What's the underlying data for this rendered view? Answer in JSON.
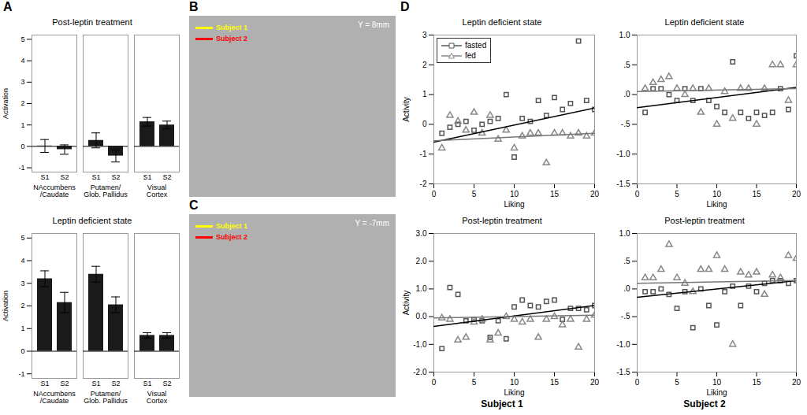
{
  "chart_data": [
    {
      "type": "bar",
      "title": "Post-leptin treatment",
      "categories": [
        "NAccumbens\n/Caudate",
        "Putamen/\nGlob. Pallidus",
        "Visual\nCortex"
      ],
      "series": [
        {
          "name": "S1",
          "color": "#1a1a1a",
          "values": [
            0.02,
            0.28,
            1.15
          ],
          "errors": [
            0.3,
            0.35,
            0.2
          ]
        },
        {
          "name": "S2",
          "color": "#1a1a1a",
          "values": [
            -0.15,
            -0.45,
            1.0
          ],
          "errors": [
            0.22,
            0.28,
            0.18
          ]
        }
      ],
      "ylabel": "Activation",
      "ylim": [
        -1.2,
        5.2
      ],
      "yticks": [
        -1,
        0,
        1,
        2,
        3,
        4,
        5
      ],
      "annotations": [
        "A"
      ]
    },
    {
      "type": "bar",
      "title": "Leptin deficient state",
      "categories": [
        "NAccumbens\n/Caudate",
        "Putamen/\nGlob. Pallidus",
        "Visual\nCortex"
      ],
      "series": [
        {
          "name": "S1",
          "color": "#1a1a1a",
          "values": [
            3.2,
            3.4,
            0.7
          ],
          "errors": [
            0.35,
            0.35,
            0.12
          ]
        },
        {
          "name": "S2",
          "color": "#1a1a1a",
          "values": [
            2.15,
            2.05,
            0.7
          ],
          "errors": [
            0.45,
            0.35,
            0.12
          ]
        }
      ],
      "ylabel": "Activation",
      "ylim": [
        -1.2,
        5.2
      ],
      "yticks": [
        -1,
        0,
        1,
        2,
        3,
        4,
        5
      ]
    },
    {
      "type": "image",
      "series": [
        {
          "name": "Subject 1",
          "color": "yellow"
        },
        {
          "name": "Subject 2",
          "color": "red"
        }
      ],
      "legend": "upper left",
      "annotations": [
        "B",
        "Y = 8mm"
      ]
    },
    {
      "type": "image",
      "series": [
        {
          "name": "Subject 1",
          "color": "yellow"
        },
        {
          "name": "Subject 2",
          "color": "red"
        }
      ],
      "legend": "upper left",
      "annotations": [
        "C",
        "Y = -7mm"
      ]
    },
    {
      "type": "scatter",
      "title": "Leptin deficient state",
      "xlabel": "Liking",
      "ylabel": "Activity",
      "xlim": [
        0,
        20
      ],
      "ylim": [
        -2.0,
        3.0
      ],
      "xticks": [
        0,
        5,
        10,
        15,
        20
      ],
      "yticks": [
        -2,
        -1,
        0,
        1,
        2,
        3
      ],
      "legend": "upper left",
      "series": [
        {
          "name": "fasted",
          "type": "scatter",
          "marker": "square",
          "color": "#555555",
          "x": [
            1,
            2,
            3,
            4,
            5,
            6,
            7,
            8,
            9,
            10,
            11,
            12,
            13,
            14,
            15,
            16,
            17,
            18,
            19,
            20
          ],
          "values": [
            -0.3,
            -0.1,
            0.0,
            0.1,
            -0.2,
            0.0,
            0.1,
            0.2,
            1.0,
            -1.1,
            0.2,
            0.1,
            0.8,
            0.3,
            0.9,
            0.5,
            0.7,
            2.8,
            0.8,
            0.5
          ]
        },
        {
          "name": "fed",
          "type": "scatter",
          "marker": "triangle",
          "color": "#888888",
          "x": [
            1,
            2,
            3,
            4,
            5,
            6,
            7,
            8,
            9,
            10,
            11,
            12,
            13,
            14,
            15,
            16,
            17,
            18,
            19,
            20
          ],
          "values": [
            -0.8,
            0.3,
            0.1,
            -0.2,
            0.4,
            -0.3,
            0.3,
            -0.5,
            -0.2,
            -0.8,
            -0.4,
            -0.3,
            -0.3,
            -1.3,
            -0.3,
            -0.3,
            -0.4,
            -0.3,
            -0.4,
            -0.3
          ]
        },
        {
          "type": "line",
          "color": "black",
          "x": [
            0,
            20
          ],
          "values": [
            -0.6,
            0.55
          ]
        },
        {
          "type": "line",
          "color": "#777777",
          "x": [
            0,
            20
          ],
          "values": [
            -0.55,
            -0.3
          ]
        }
      ],
      "annotations": [
        "D"
      ]
    },
    {
      "type": "scatter",
      "title": "Leptin deficient state",
      "xlabel": "Liking",
      "xlim": [
        0,
        20
      ],
      "ylim": [
        -1.5,
        1.0
      ],
      "xticks": [
        0,
        5,
        10,
        15,
        20
      ],
      "yticks": [
        -1.5,
        {
          "value": -1.0,
          "label": "-1.0"
        },
        {
          "value": -0.5,
          "label": "-.5"
        },
        {
          "value": 0.0,
          "label": ".0"
        },
        {
          "value": 0.5,
          "label": ".5"
        },
        {
          "value": 1.0,
          "label": "1.0"
        }
      ],
      "series": [
        {
          "type": "scatter",
          "marker": "square",
          "color": "#555555",
          "x": [
            1,
            2,
            3,
            4,
            5,
            6,
            7,
            8,
            9,
            10,
            11,
            12,
            13,
            14,
            15,
            16,
            17,
            18,
            19,
            20
          ],
          "values": [
            -0.3,
            0.1,
            0.1,
            0.0,
            -0.1,
            0.1,
            -0.1,
            0.1,
            -0.1,
            -0.2,
            -0.3,
            0.55,
            -0.3,
            -0.4,
            -0.3,
            -0.35,
            -0.3,
            0.1,
            -0.25,
            0.65
          ]
        },
        {
          "type": "scatter",
          "marker": "triangle",
          "color": "#888888",
          "x": [
            1,
            2,
            3,
            4,
            5,
            6,
            7,
            8,
            9,
            10,
            11,
            12,
            13,
            14,
            15,
            16,
            17,
            18,
            19,
            20
          ],
          "values": [
            0.1,
            0.2,
            0.25,
            0.3,
            0.1,
            0.0,
            0.1,
            -0.3,
            0.1,
            -0.5,
            0.05,
            -0.4,
            0.1,
            0.1,
            -0.5,
            0.1,
            0.5,
            0.5,
            -0.1,
            0.5
          ]
        },
        {
          "type": "line",
          "color": "black",
          "x": [
            0,
            20
          ],
          "values": [
            -0.22,
            0.12
          ]
        },
        {
          "type": "line",
          "color": "#777777",
          "x": [
            0,
            20
          ],
          "values": [
            0.05,
            0.1
          ]
        }
      ]
    },
    {
      "type": "scatter",
      "title": "Post-leptin treatment",
      "xlabel": "Liking",
      "ylabel": "Activity",
      "xlim": [
        0,
        20
      ],
      "ylim": [
        -2.0,
        3.0
      ],
      "xticks": [
        0,
        5,
        10,
        15,
        20
      ],
      "yticks": [
        {
          "value": -2.0,
          "label": "-2.0"
        },
        {
          "value": -1.0,
          "label": "-1.0"
        },
        {
          "value": 0.0,
          "label": "0.0"
        },
        {
          "value": 1.0,
          "label": "1.0"
        },
        {
          "value": 2.0,
          "label": "2.0"
        },
        {
          "value": 3.0,
          "label": "3.0"
        }
      ],
      "series": [
        {
          "type": "scatter",
          "marker": "square",
          "color": "#555555",
          "x": [
            1,
            2,
            3,
            4,
            5,
            6,
            7,
            8,
            9,
            10,
            11,
            12,
            13,
            14,
            15,
            16,
            17,
            18,
            19,
            20
          ],
          "values": [
            -1.15,
            1.05,
            0.8,
            -0.15,
            -0.1,
            -0.15,
            -0.75,
            -0.15,
            -0.8,
            0.35,
            0.6,
            0.4,
            0.35,
            0.55,
            0.6,
            -0.1,
            0.3,
            0.3,
            0.25,
            0.4
          ]
        },
        {
          "type": "scatter",
          "marker": "triangle",
          "color": "#888888",
          "x": [
            1,
            2,
            3,
            4,
            5,
            6,
            7,
            8,
            9,
            10,
            11,
            12,
            13,
            14,
            15,
            16,
            17,
            18,
            19,
            20
          ],
          "values": [
            -0.05,
            -0.1,
            -0.85,
            -0.75,
            -0.2,
            -0.1,
            -0.85,
            -0.6,
            0.0,
            -0.1,
            -0.2,
            -0.1,
            -0.75,
            -0.1,
            0.0,
            -0.3,
            -0.1,
            -1.1,
            -0.1,
            0.05
          ]
        },
        {
          "type": "line",
          "color": "black",
          "x": [
            0,
            20
          ],
          "values": [
            -0.35,
            0.4
          ]
        },
        {
          "type": "line",
          "color": "#777777",
          "x": [
            0,
            20
          ],
          "values": [
            -0.05,
            0.05
          ]
        }
      ],
      "annotations": [
        "Subject 1"
      ]
    },
    {
      "type": "scatter",
      "title": "Post-leptin treatment",
      "xlabel": "Liking",
      "xlim": [
        0,
        20
      ],
      "ylim": [
        -1.5,
        1.0
      ],
      "xticks": [
        0,
        5,
        10,
        15,
        20
      ],
      "yticks": [
        -1.5,
        {
          "value": -1.0,
          "label": "-1.0"
        },
        {
          "value": -0.5,
          "label": "-.5"
        },
        {
          "value": 0.0,
          "label": ".0"
        },
        {
          "value": 0.5,
          "label": ".5"
        },
        {
          "value": 1.0,
          "label": "1.0"
        }
      ],
      "series": [
        {
          "type": "scatter",
          "marker": "square",
          "color": "#555555",
          "x": [
            1,
            2,
            3,
            4,
            5,
            6,
            7,
            8,
            9,
            10,
            11,
            12,
            13,
            14,
            15,
            16,
            17,
            18,
            19,
            20
          ],
          "values": [
            -0.05,
            -0.05,
            0.0,
            -0.1,
            -0.35,
            -0.05,
            -0.7,
            0.0,
            -0.3,
            -0.65,
            -0.05,
            0.05,
            -0.3,
            0.05,
            -0.05,
            0.1,
            0.15,
            0.15,
            0.1,
            0.15
          ]
        },
        {
          "type": "scatter",
          "marker": "triangle",
          "color": "#888888",
          "x": [
            1,
            2,
            3,
            4,
            5,
            6,
            7,
            8,
            9,
            10,
            11,
            12,
            13,
            14,
            15,
            16,
            17,
            18,
            19,
            20
          ],
          "values": [
            0.2,
            0.2,
            0.35,
            0.8,
            0.2,
            0.1,
            -0.05,
            0.35,
            0.35,
            0.6,
            0.35,
            -1.0,
            0.3,
            0.25,
            0.3,
            -0.1,
            0.25,
            0.2,
            0.6,
            0.55
          ]
        },
        {
          "type": "line",
          "color": "black",
          "x": [
            0,
            20
          ],
          "values": [
            -0.15,
            0.15
          ]
        },
        {
          "type": "line",
          "color": "#777777",
          "x": [
            0,
            20
          ],
          "values": [
            0.1,
            0.15
          ]
        }
      ],
      "annotations": [
        "Subject 2"
      ]
    }
  ]
}
